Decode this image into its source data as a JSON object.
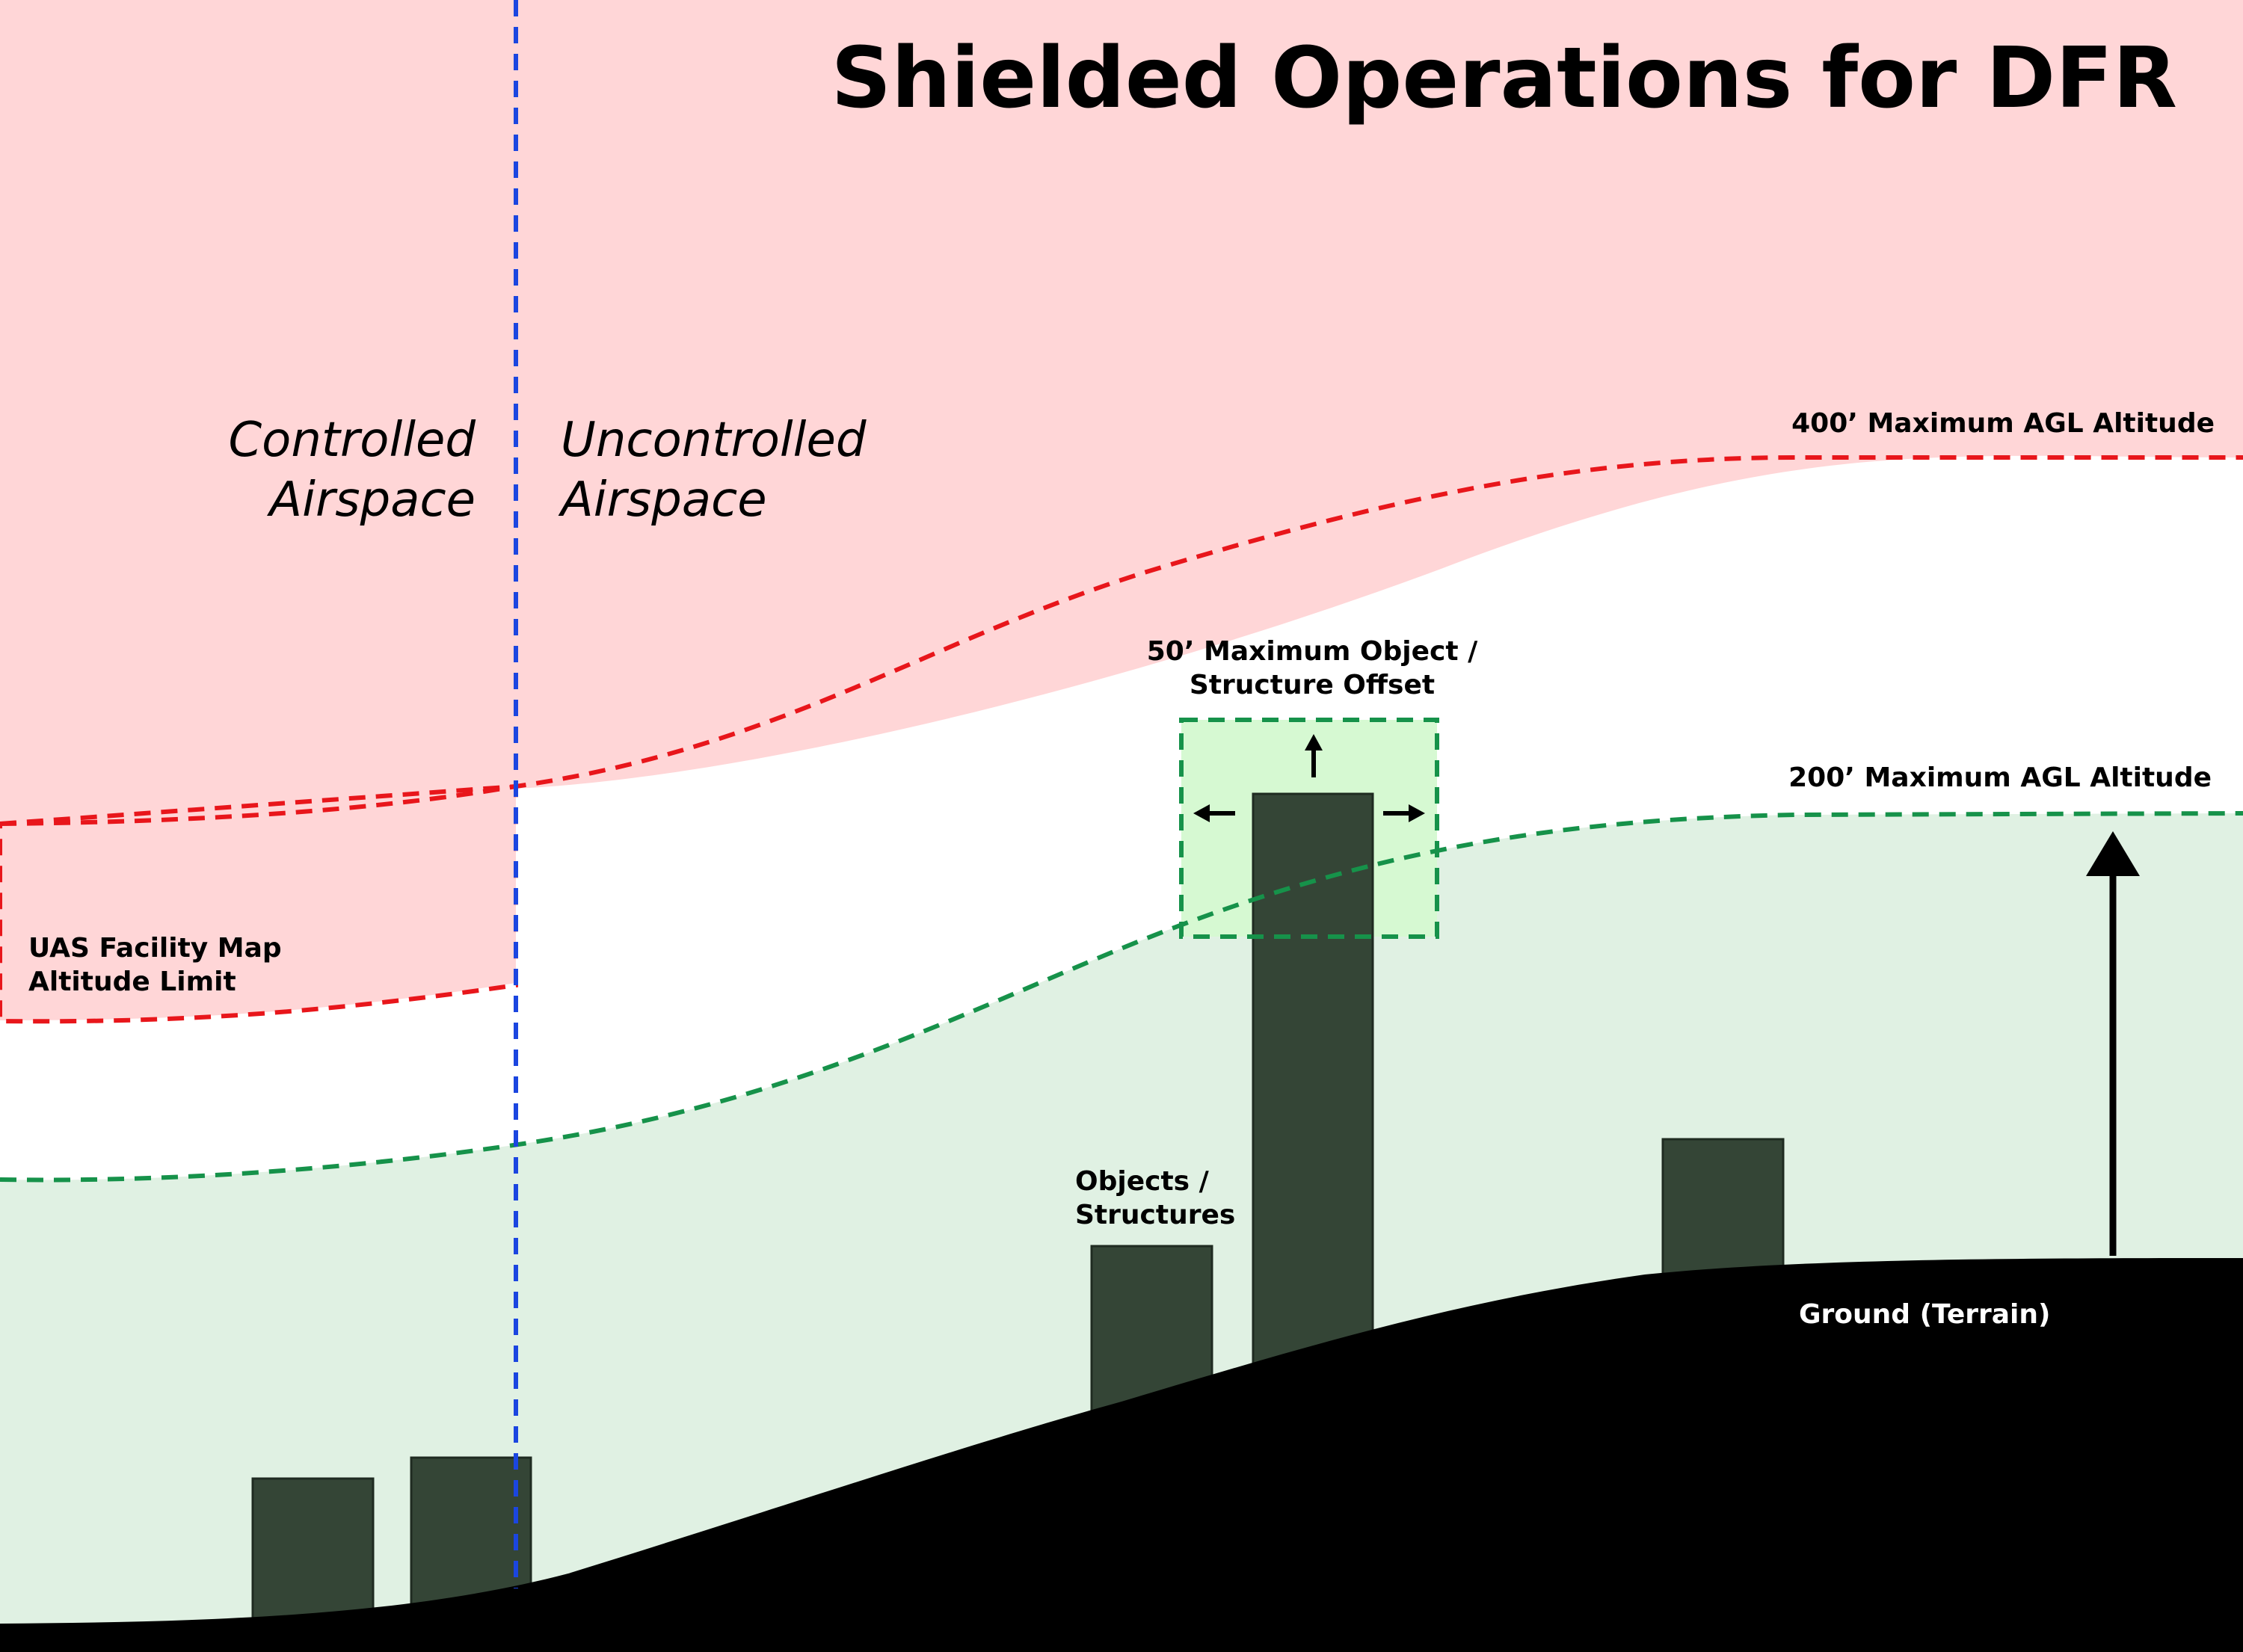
{
  "title": "Shielded Operations for DFR",
  "zones": {
    "controlled": [
      "Controlled",
      "Airspace"
    ],
    "uncontrolled": [
      "Uncontrolled",
      "Airspace"
    ]
  },
  "labels": {
    "max400": "400’ Maximum AGL Altitude",
    "max200": "200’ Maximum AGL Altitude",
    "offset": [
      "50’ Maximum Object /",
      "Structure Offset"
    ],
    "facility": [
      "UAS Facility Map",
      "Altitude Limit"
    ],
    "objects": [
      "Objects /",
      "Structures"
    ],
    "ground": "Ground (Terrain)"
  },
  "colors": {
    "restricted_fill": "#ffd6d7",
    "shielded_fill": "#e0f1e3",
    "offset_fill": "#d6f9d2",
    "structure": "#344536",
    "red_line": "#e8161b",
    "green_line": "#16924a",
    "blue_line": "#1b46e0",
    "ground": "#000000"
  }
}
